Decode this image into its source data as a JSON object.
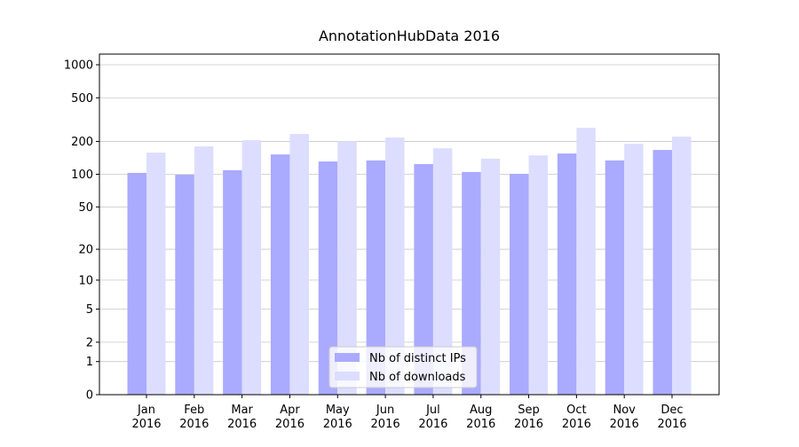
{
  "chart_data": {
    "type": "bar",
    "title": "AnnotationHubData 2016",
    "categories": [
      "Jan\n2016",
      "Feb\n2016",
      "Mar\n2016",
      "Apr\n2016",
      "May\n2016",
      "Jun\n2016",
      "Jul\n2016",
      "Aug\n2016",
      "Sep\n2016",
      "Oct\n2016",
      "Nov\n2016",
      "Dec\n2016"
    ],
    "series": [
      {
        "name": "Nb of distinct IPs",
        "color": "#aaaaff",
        "values": [
          103,
          99,
          109,
          152,
          131,
          134,
          124,
          105,
          101,
          155,
          134,
          167
        ]
      },
      {
        "name": "Nb of downloads",
        "color": "#ddddff",
        "values": [
          158,
          180,
          205,
          234,
          201,
          217,
          173,
          139,
          149,
          266,
          190,
          221
        ]
      }
    ],
    "yscale": "log1p",
    "ylim": [
      0,
      1250
    ],
    "yticks": [
      0,
      1,
      2,
      5,
      10,
      20,
      50,
      100,
      200,
      500,
      1000
    ],
    "grid": true,
    "legend": "lower center"
  }
}
